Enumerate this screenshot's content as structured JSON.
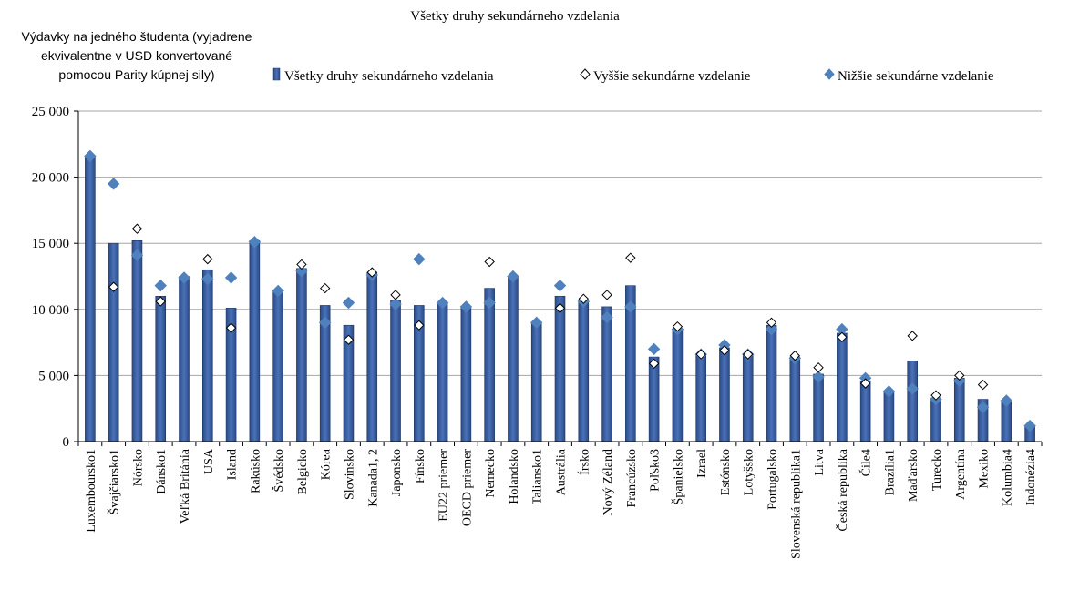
{
  "chart_data": {
    "type": "bar",
    "title": "Všetky druhy sekundárneho vzdelania",
    "ylabel_lines": [
      "Výdavky na jedného študenta (vyjadrene",
      "ekvivalentne  v USD konvertované",
      "pomocou Parity kúpnej sily)"
    ],
    "ylim": [
      0,
      25000
    ],
    "yticks": [
      0,
      5000,
      10000,
      15000,
      20000,
      25000
    ],
    "ytick_labels": [
      "0",
      "5 000",
      "10 000",
      "15 000",
      "20 000",
      "25 000"
    ],
    "grid": true,
    "legend_position": "top",
    "colors": {
      "bar": "#2E4C84",
      "bar_fill": "#3E63A8",
      "lower": "#4F81BD",
      "upper_edge": "#000000"
    },
    "categories": [
      "Luxemboursko1",
      "Švajčiarsko1",
      "Nórsko",
      "Dánsko1",
      "Veľká Británia",
      "USA",
      "Island",
      "Rakúsko",
      "Švédsko",
      "Belgicko",
      "Kórea",
      "Slovinsko",
      "Kanada1, 2",
      "Japonsko",
      "Fínsko",
      "EU22 priemer",
      "OECD priemer",
      "Nemecko",
      "Holandsko",
      "Taliansko1",
      "Austrália",
      "Írsko",
      "Nový Zéland",
      "Francúzsko",
      "Poľsko3",
      "Španielsko",
      "Izrael",
      "Estónsko",
      "Lotyšsko",
      "Portugalsko",
      "Slovenská republika1",
      "Litva",
      "Česká republika",
      "Čile4",
      "Brazília1",
      "Maďarsko",
      "Turecko",
      "Argentína",
      "Mexiko",
      "Kolumbia4",
      "Indonézia4"
    ],
    "series": [
      {
        "name": "Všetky druhy sekundárneho vzdelania",
        "kind": "bar",
        "values": [
          21600,
          15000,
          15200,
          11000,
          12500,
          13000,
          10100,
          15200,
          11300,
          13100,
          10300,
          8800,
          12800,
          10700,
          10300,
          10500,
          10200,
          11600,
          12500,
          9000,
          11000,
          10700,
          10200,
          11800,
          6400,
          8500,
          6600,
          7100,
          6600,
          8800,
          6400,
          5100,
          8200,
          4600,
          3800,
          6100,
          3300,
          4800,
          3200,
          3000,
          1200
        ]
      },
      {
        "name": "Vyššie sekundárne vzdelanie",
        "kind": "open-diamond",
        "values": [
          null,
          11700,
          16100,
          10600,
          null,
          13800,
          8600,
          null,
          null,
          13400,
          11600,
          7700,
          12800,
          11100,
          8800,
          null,
          null,
          13600,
          null,
          null,
          10100,
          10800,
          11100,
          13900,
          5900,
          8700,
          6600,
          6900,
          6600,
          9000,
          6500,
          5600,
          7900,
          4400,
          null,
          8000,
          3500,
          5000,
          4300,
          null,
          null
        ]
      },
      {
        "name": "Nižšie sekundárne vzdelanie",
        "kind": "filled-diamond",
        "values": [
          21600,
          19500,
          14100,
          11800,
          12400,
          12300,
          12400,
          15100,
          11400,
          12900,
          9000,
          10500,
          12600,
          10400,
          13800,
          10500,
          10200,
          10500,
          12500,
          9000,
          11800,
          10600,
          9400,
          10200,
          7000,
          8500,
          6600,
          7300,
          6600,
          8500,
          6300,
          4900,
          8500,
          4800,
          3800,
          4000,
          3200,
          4600,
          2600,
          3100,
          1200
        ]
      }
    ]
  }
}
